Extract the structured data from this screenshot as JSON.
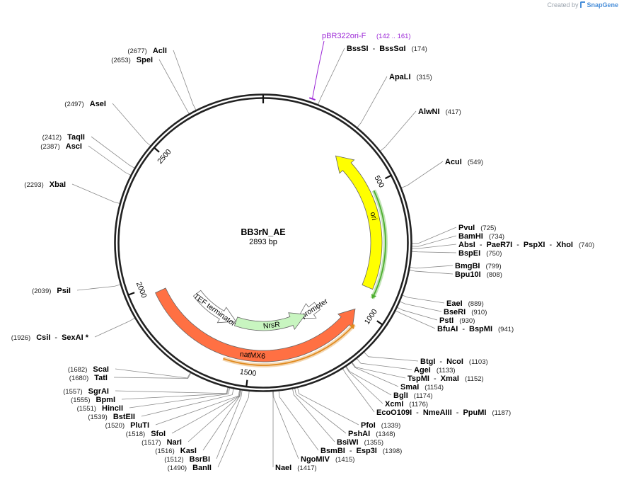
{
  "credit": {
    "prefix": "Created by",
    "brand": "SnapGene"
  },
  "plasmid": {
    "name": "BB3rN_AE",
    "length_label": "2893 bp",
    "length": 2893
  },
  "tick_labels": [
    {
      "label": "500",
      "pos": 500
    },
    {
      "label": "1000",
      "pos": 1000
    },
    {
      "label": "1500",
      "pos": 1500
    },
    {
      "label": "2000",
      "pos": 2000
    },
    {
      "label": "2500",
      "pos": 2500
    }
  ],
  "primer": {
    "name": "pBR322ori-F",
    "range": "(142 .. 161)",
    "start": 142,
    "end": 161,
    "color": "#9b27d6"
  },
  "features": [
    {
      "name": "ori",
      "start": 320,
      "end": 908,
      "direction": "ccw",
      "color": "#ffff00",
      "ring": "outer"
    },
    {
      "name": "natMX6",
      "start": 1010,
      "end": 1970,
      "direction": "ccw",
      "color": "#ff7043",
      "ring": "outer"
    },
    {
      "name": "TEF promoter",
      "start": 1250,
      "end": 1120,
      "direction": "cw",
      "color": "#ffffff",
      "ring": "inner"
    },
    {
      "name": "NrsR",
      "start": 1200,
      "end": 1600,
      "direction": "ccw",
      "color": "#c8f5c0",
      "ring": "inner"
    },
    {
      "name": "TEF terminator",
      "start": 1600,
      "end": 1870,
      "direction": "ccw",
      "color": "#ffffff",
      "ring": "inner"
    }
  ],
  "orfs": [
    {
      "start": 520,
      "end": 940,
      "direction": "cw",
      "color": "#4cae2e"
    },
    {
      "start": 1060,
      "end": 1600,
      "direction": "ccw",
      "color": "#e08a1e"
    }
  ],
  "sites": [
    {
      "pos": 174,
      "names": [
        "BssSI",
        "BssSαI"
      ],
      "pos_label": "(174)"
    },
    {
      "pos": 315,
      "names": [
        "ApaLI"
      ],
      "pos_label": "(315)"
    },
    {
      "pos": 417,
      "names": [
        "AlwNI"
      ],
      "pos_label": "(417)"
    },
    {
      "pos": 549,
      "names": [
        "AcuI"
      ],
      "pos_label": "(549)"
    },
    {
      "pos": 725,
      "names": [
        "PvuI"
      ],
      "pos_label": "(725)"
    },
    {
      "pos": 734,
      "names": [
        "BamHI"
      ],
      "pos_label": "(734)"
    },
    {
      "pos": 740,
      "names": [
        "AbsI",
        "PaeR7I",
        "PspXI",
        "XhoI"
      ],
      "pos_label": "(740)"
    },
    {
      "pos": 750,
      "names": [
        "BspEI"
      ],
      "pos_label": "(750)"
    },
    {
      "pos": 799,
      "names": [
        "BmgBI"
      ],
      "pos_label": "(799)"
    },
    {
      "pos": 808,
      "names": [
        "Bpu10I"
      ],
      "pos_label": "(808)"
    },
    {
      "pos": 889,
      "names": [
        "EaeI"
      ],
      "pos_label": "(889)"
    },
    {
      "pos": 910,
      "names": [
        "BseRI"
      ],
      "pos_label": "(910)"
    },
    {
      "pos": 930,
      "names": [
        "PstI"
      ],
      "pos_label": "(930)"
    },
    {
      "pos": 941,
      "names": [
        "BfuAI",
        "BspMI"
      ],
      "pos_label": "(941)"
    },
    {
      "pos": 1103,
      "names": [
        "BtgI",
        "NcoI"
      ],
      "pos_label": "(1103)"
    },
    {
      "pos": 1133,
      "names": [
        "AgeI"
      ],
      "pos_label": "(1133)"
    },
    {
      "pos": 1152,
      "names": [
        "TspMI",
        "XmaI"
      ],
      "pos_label": "(1152)"
    },
    {
      "pos": 1154,
      "names": [
        "SmaI"
      ],
      "pos_label": "(1154)"
    },
    {
      "pos": 1174,
      "names": [
        "BglI"
      ],
      "pos_label": "(1174)"
    },
    {
      "pos": 1176,
      "names": [
        "XcmI"
      ],
      "pos_label": "(1176)"
    },
    {
      "pos": 1187,
      "names": [
        "EcoO109I",
        "NmeAIII",
        "PpuMI"
      ],
      "pos_label": "(1187)"
    },
    {
      "pos": 1339,
      "names": [
        "PfoI"
      ],
      "pos_label": "(1339)"
    },
    {
      "pos": 1348,
      "names": [
        "PshAI"
      ],
      "pos_label": "(1348)"
    },
    {
      "pos": 1355,
      "names": [
        "BsiWI"
      ],
      "pos_label": "(1355)"
    },
    {
      "pos": 1398,
      "names": [
        "BsmBI",
        "Esp3I"
      ],
      "pos_label": "(1398)"
    },
    {
      "pos": 1415,
      "names": [
        "NgoMIV"
      ],
      "pos_label": "(1415)"
    },
    {
      "pos": 1417,
      "names": [
        "NaeI"
      ],
      "pos_label": "(1417)"
    },
    {
      "pos": 1490,
      "names": [
        "BanII"
      ],
      "pos_label": "(1490)"
    },
    {
      "pos": 1512,
      "names": [
        "BsrBI"
      ],
      "pos_label": "(1512)"
    },
    {
      "pos": 1516,
      "names": [
        "KasI"
      ],
      "pos_label": "(1516)"
    },
    {
      "pos": 1517,
      "names": [
        "NarI"
      ],
      "pos_label": "(1517)"
    },
    {
      "pos": 1518,
      "names": [
        "SfoI"
      ],
      "pos_label": "(1518)"
    },
    {
      "pos": 1520,
      "names": [
        "PluTI"
      ],
      "pos_label": "(1520)"
    },
    {
      "pos": 1539,
      "names": [
        "BstEII"
      ],
      "pos_label": "(1539)"
    },
    {
      "pos": 1551,
      "names": [
        "HincII"
      ],
      "pos_label": "(1551)"
    },
    {
      "pos": 1555,
      "names": [
        "BpmI"
      ],
      "pos_label": "(1555)"
    },
    {
      "pos": 1557,
      "names": [
        "SgrAI"
      ],
      "pos_label": "(1557)"
    },
    {
      "pos": 1680,
      "names": [
        "TatI"
      ],
      "pos_label": "(1680)"
    },
    {
      "pos": 1682,
      "names": [
        "ScaI"
      ],
      "pos_label": "(1682)"
    },
    {
      "pos": 1926,
      "names": [
        "CsiI",
        "SexAI *"
      ],
      "pos_label": "(1926)"
    },
    {
      "pos": 2039,
      "names": [
        "PsiI"
      ],
      "pos_label": "(2039)"
    },
    {
      "pos": 2293,
      "names": [
        "XbaI"
      ],
      "pos_label": "(2293)"
    },
    {
      "pos": 2387,
      "names": [
        "AscI"
      ],
      "pos_label": "(2387)"
    },
    {
      "pos": 2412,
      "names": [
        "TaqII"
      ],
      "pos_label": "(2412)"
    },
    {
      "pos": 2497,
      "names": [
        "AseI"
      ],
      "pos_label": "(2497)"
    },
    {
      "pos": 2653,
      "names": [
        "SpeI"
      ],
      "pos_label": "(2653)"
    },
    {
      "pos": 2677,
      "names": [
        "AclI"
      ],
      "pos_label": "(2677)"
    }
  ]
}
